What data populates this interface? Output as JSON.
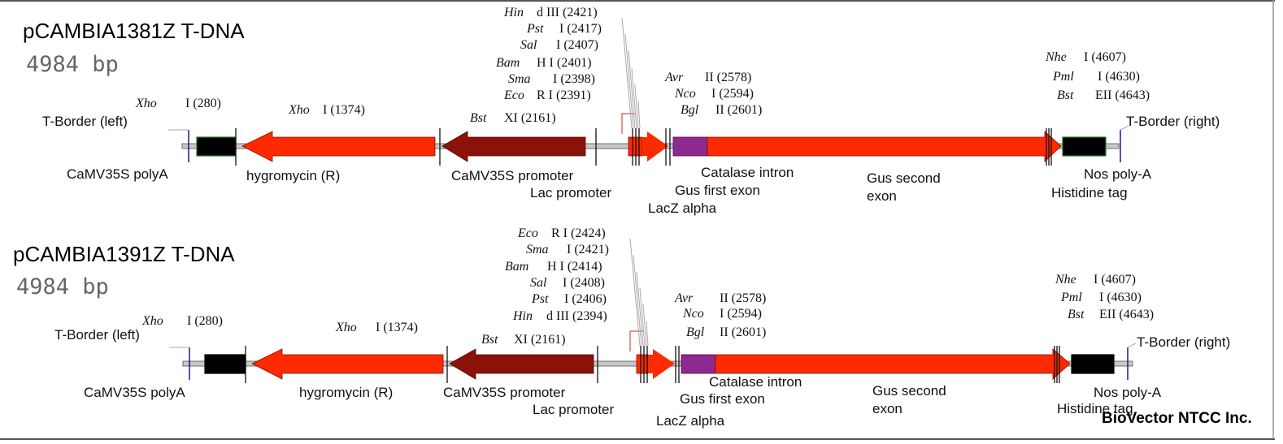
{
  "colors": {
    "marker": "#ff2a00",
    "promoter": "#8b1208",
    "intron": "#8e2a8e",
    "terminator": "#000000",
    "terminator_border": "#1a7a1a",
    "backbone": "#c8c8c8",
    "border": "#1a1a8a"
  },
  "maps": [
    {
      "title": "pCAMBIA1381Z T-DNA",
      "size": "4984 bp",
      "features": {
        "tborder_left": "T-Border (left)",
        "camv_polya": "CaMV35S polyA",
        "hygromycin": "hygromycin (R)",
        "camv_promoter": "CaMV35S promoter",
        "lac_promoter": "Lac promoter",
        "lacz": "LacZ alpha",
        "catalase": "Catalase intron",
        "gus_first": "Gus first exon",
        "gus_second_1": "Gus second",
        "gus_second_2": "exon",
        "tborder_right": "T-Border (right)",
        "nos": "Nos poly-A",
        "his": "Histidine tag"
      },
      "sites": [
        {
          "enzyme": "Hin",
          "rest": "d III (2421)"
        },
        {
          "enzyme": "Pst",
          "rest": "I (2417)"
        },
        {
          "enzyme": "Sal",
          "rest": "I (2407)"
        },
        {
          "enzyme": "Bam",
          "rest": "H I (2401)"
        },
        {
          "enzyme": "Sma",
          "rest": "I (2398)"
        },
        {
          "enzyme": "Eco",
          "rest": "R I (2391)"
        },
        {
          "enzyme": "Xho",
          "rest": "I (280)"
        },
        {
          "enzyme": "Xho",
          "rest": "I (1374)"
        },
        {
          "enzyme": "Bst",
          "rest": "XI (2161)"
        },
        {
          "enzyme": "Avr",
          "rest": "II (2578)"
        },
        {
          "enzyme": "Nco",
          "rest": "I (2594)"
        },
        {
          "enzyme": "Bgl",
          "rest": "II (2601)"
        },
        {
          "enzyme": "Nhe",
          "rest": "I (4607)"
        },
        {
          "enzyme": "Pml",
          "rest": "I (4630)"
        },
        {
          "enzyme": "Bst",
          "rest": "EII (4643)"
        }
      ]
    },
    {
      "title": "pCAMBIA1391Z T-DNA",
      "size": "4984 bp",
      "features": {
        "tborder_left": "T-Border (left)",
        "camv_polya": "CaMV35S polyA",
        "hygromycin": "hygromycin (R)",
        "camv_promoter": "CaMV35S promoter",
        "lac_promoter": "Lac promoter",
        "lacz": "LacZ alpha",
        "catalase": "Catalase intron",
        "gus_first": "Gus first exon",
        "gus_second_1": "Gus second",
        "gus_second_2": "exon",
        "tborder_right": "T-Border (right)",
        "nos": "Nos poly-A",
        "his": "Histidine tag"
      },
      "sites": [
        {
          "enzyme": "Eco",
          "rest": "R I (2424)"
        },
        {
          "enzyme": "Sma",
          "rest": "I (2421)"
        },
        {
          "enzyme": "Bam",
          "rest": "H I (2414)"
        },
        {
          "enzyme": "Sal",
          "rest": "I (2408)"
        },
        {
          "enzyme": "Pst",
          "rest": "I (2406)"
        },
        {
          "enzyme": "Hin",
          "rest": "d III (2394)"
        },
        {
          "enzyme": "Xho",
          "rest": "I (280)"
        },
        {
          "enzyme": "Xho",
          "rest": "I (1374)"
        },
        {
          "enzyme": "Bst",
          "rest": "XI (2161)"
        },
        {
          "enzyme": "Avr",
          "rest": "II (2578)"
        },
        {
          "enzyme": "Nco",
          "rest": "I (2594)"
        },
        {
          "enzyme": "Bgl",
          "rest": "II (2601)"
        },
        {
          "enzyme": "Nhe",
          "rest": "I (4607)"
        },
        {
          "enzyme": "Pml",
          "rest": "I (4630)"
        },
        {
          "enzyme": "Bst",
          "rest": "EII (4643)"
        }
      ]
    }
  ],
  "watermark": "BioVector NTCC Inc."
}
